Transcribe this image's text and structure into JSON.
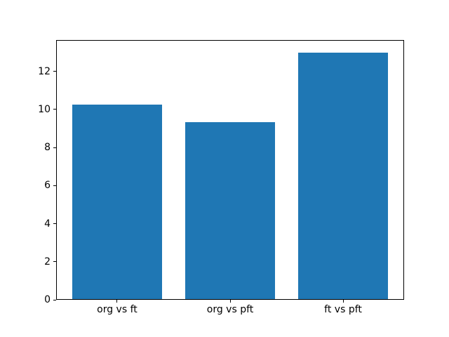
{
  "chart_data": {
    "type": "bar",
    "categories": [
      "org vs ft",
      "org vs pft",
      "ft vs pft"
    ],
    "values": [
      10.25,
      9.32,
      13.0
    ],
    "title": "",
    "xlabel": "",
    "ylabel": "",
    "yticks": [
      0,
      2,
      4,
      6,
      8,
      10,
      12
    ],
    "ylim": [
      0,
      13.65
    ],
    "xlim": [
      -0.54,
      2.54
    ],
    "bar_width_fraction": 0.8,
    "bar_color": "#1f77b4",
    "background": "#ffffff",
    "axis_color": "#000000",
    "text_color": "#000000",
    "grid": false,
    "legend": "none"
  }
}
